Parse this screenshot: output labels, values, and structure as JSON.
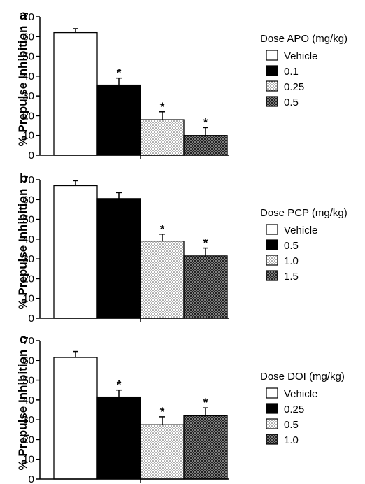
{
  "chart_data": [
    {
      "panel": "a",
      "type": "bar",
      "ylabel": "% Prepulse Inhibition",
      "ylim": [
        0,
        70
      ],
      "yticks": [
        "0",
        "10",
        "20",
        "30",
        "40",
        "50",
        "60",
        "70"
      ],
      "legend_title": "Dose APO (mg/kg)",
      "legend_position": "right",
      "series": [
        {
          "name": "Vehicle",
          "value": 62,
          "error": 2,
          "fill": "white",
          "significant": false
        },
        {
          "name": "0.1",
          "value": 35.5,
          "error": 3.5,
          "fill": "black",
          "significant": true
        },
        {
          "name": "0.25",
          "value": 18,
          "error": 4,
          "fill": "light-dots",
          "significant": true
        },
        {
          "name": "0.5",
          "value": 10,
          "error": 4,
          "fill": "dark-dots",
          "significant": true
        }
      ],
      "significance_marker": "*"
    },
    {
      "panel": "b",
      "type": "bar",
      "ylabel": "% Prepulse Inhibition",
      "ylim": [
        0,
        70
      ],
      "yticks": [
        "0",
        "10",
        "20",
        "30",
        "40",
        "50",
        "60",
        "70"
      ],
      "legend_title": "Dose PCP (mg/kg)",
      "legend_position": "right",
      "series": [
        {
          "name": "Vehicle",
          "value": 67,
          "error": 2.5,
          "fill": "white",
          "significant": false
        },
        {
          "name": "0.5",
          "value": 60.5,
          "error": 3,
          "fill": "black",
          "significant": false
        },
        {
          "name": "1.0",
          "value": 39,
          "error": 3.5,
          "fill": "light-dots",
          "significant": true
        },
        {
          "name": "1.5",
          "value": 31.5,
          "error": 4,
          "fill": "dark-dots",
          "significant": true
        }
      ],
      "significance_marker": "*"
    },
    {
      "panel": "c",
      "type": "bar",
      "ylabel": "% Prepulse Inhibition",
      "ylim": [
        0,
        70
      ],
      "yticks": [
        "0",
        "10",
        "20",
        "30",
        "40",
        "50",
        "60",
        "70"
      ],
      "legend_title": "Dose DOI (mg/kg)",
      "legend_position": "right",
      "series": [
        {
          "name": "Vehicle",
          "value": 61.5,
          "error": 3,
          "fill": "white",
          "significant": false
        },
        {
          "name": "0.25",
          "value": 41.5,
          "error": 3.5,
          "fill": "black",
          "significant": true
        },
        {
          "name": "0.5",
          "value": 27.5,
          "error": 4,
          "fill": "light-dots",
          "significant": true
        },
        {
          "name": "1.0",
          "value": 32,
          "error": 4,
          "fill": "dark-dots",
          "significant": true
        }
      ],
      "significance_marker": "*"
    }
  ]
}
